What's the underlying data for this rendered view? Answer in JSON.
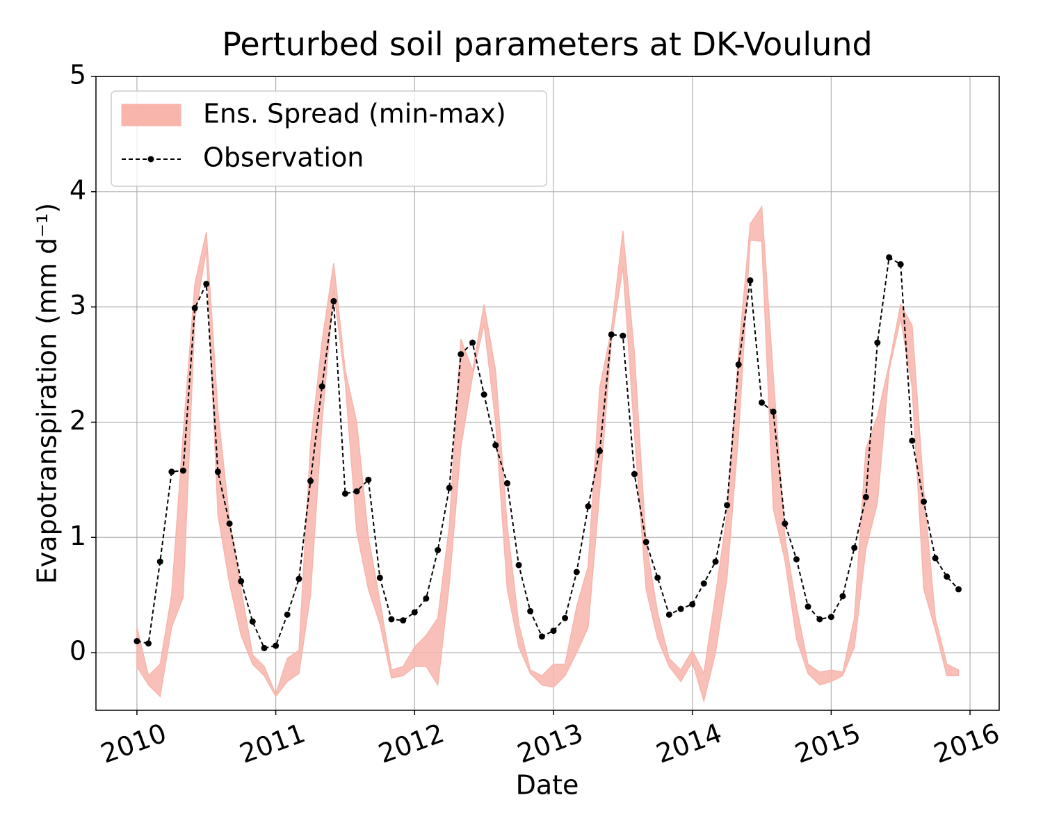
{
  "chart_data": {
    "type": "line",
    "title": "Perturbed soil parameters at DK-Voulund",
    "xlabel": "Date",
    "ylabel": "Evapotranspiration  (mm d⁻¹)",
    "x": [
      2010,
      2010.083,
      2010.167,
      2010.25,
      2010.333,
      2010.417,
      2010.5,
      2010.583,
      2010.667,
      2010.75,
      2010.833,
      2010.917,
      2011,
      2011.083,
      2011.167,
      2011.25,
      2011.333,
      2011.417,
      2011.5,
      2011.583,
      2011.667,
      2011.75,
      2011.833,
      2011.917,
      2012,
      2012.083,
      2012.167,
      2012.25,
      2012.333,
      2012.417,
      2012.5,
      2012.583,
      2012.667,
      2012.75,
      2012.833,
      2012.917,
      2013,
      2013.083,
      2013.167,
      2013.25,
      2013.333,
      2013.417,
      2013.5,
      2013.583,
      2013.667,
      2013.75,
      2013.833,
      2013.917,
      2014,
      2014.083,
      2014.167,
      2014.25,
      2014.333,
      2014.417,
      2014.5,
      2014.583,
      2014.667,
      2014.75,
      2014.833,
      2014.917,
      2015,
      2015.083,
      2015.167,
      2015.25,
      2015.333,
      2015.417,
      2015.5,
      2015.583,
      2015.667,
      2015.75,
      2015.833,
      2015.917
    ],
    "xlim": [
      2009.705,
      2016.21
    ],
    "xticks": [
      2010,
      2011,
      2012,
      2013,
      2014,
      2015,
      2016
    ],
    "ylim": [
      -0.5,
      5
    ],
    "yticks": [
      0,
      1,
      2,
      3,
      4,
      5
    ],
    "grid": true,
    "legend": "upper left",
    "band": {
      "name": "Ens. Spread (min-max)",
      "color": "#f7b5ab",
      "max": [
        0.22,
        -0.2,
        -0.1,
        0.5,
        1.9,
        3.2,
        3.65,
        2.1,
        1.15,
        0.55,
        -0.02,
        -0.12,
        -0.36,
        -0.05,
        0.02,
        1.8,
        2.7,
        3.38,
        2.45,
        2.0,
        1.0,
        0.45,
        -0.15,
        -0.12,
        0.05,
        0.15,
        0.3,
        1.1,
        2.72,
        2.45,
        3.02,
        2.45,
        1.1,
        0.25,
        -0.15,
        -0.2,
        -0.1,
        -0.1,
        0.4,
        0.75,
        2.3,
        2.8,
        3.66,
        2.6,
        0.95,
        0.35,
        -0.05,
        -0.15,
        0.02,
        -0.18,
        0.5,
        1.2,
        2.6,
        3.72,
        3.87,
        2.4,
        1.0,
        0.4,
        -0.1,
        -0.17,
        -0.15,
        -0.17,
        0.3,
        1.77,
        2.05,
        2.5,
        3.02,
        2.84,
        1.4,
        0.3,
        -0.1,
        -0.15
      ],
      "min": [
        -0.12,
        -0.28,
        -0.38,
        0.22,
        0.48,
        2.9,
        3.5,
        1.2,
        0.6,
        0.15,
        -0.1,
        -0.2,
        -0.38,
        -0.25,
        -0.18,
        0.5,
        2.0,
        3.15,
        2.35,
        1.05,
        0.55,
        0.25,
        -0.22,
        -0.2,
        -0.12,
        -0.12,
        -0.28,
        0.6,
        1.78,
        2.4,
        2.85,
        2.0,
        0.55,
        0.05,
        -0.18,
        -0.28,
        -0.3,
        -0.2,
        0.0,
        0.22,
        1.4,
        2.7,
        3.35,
        1.9,
        0.55,
        0.12,
        -0.12,
        -0.25,
        -0.08,
        -0.42,
        0.0,
        0.65,
        1.9,
        3.58,
        3.57,
        1.25,
        0.8,
        0.12,
        -0.18,
        -0.28,
        -0.25,
        -0.2,
        0.05,
        0.9,
        1.3,
        2.45,
        2.9,
        2.3,
        0.55,
        0.2,
        -0.2,
        -0.2
      ]
    },
    "series": [
      {
        "name": "Observation",
        "color": "#000000",
        "values": [
          0.1,
          0.08,
          0.79,
          1.57,
          1.58,
          2.99,
          3.2,
          1.57,
          1.12,
          0.62,
          0.27,
          0.04,
          0.06,
          0.33,
          0.64,
          1.49,
          2.31,
          3.05,
          1.38,
          1.4,
          1.5,
          0.65,
          0.29,
          0.28,
          0.35,
          0.47,
          0.89,
          1.43,
          2.59,
          2.69,
          2.24,
          1.8,
          1.47,
          0.76,
          0.36,
          0.14,
          0.19,
          0.3,
          0.7,
          1.27,
          1.75,
          2.76,
          2.75,
          1.55,
          0.96,
          0.65,
          0.33,
          0.38,
          0.42,
          0.6,
          0.79,
          1.28,
          2.5,
          3.23,
          2.17,
          2.09,
          1.12,
          0.81,
          0.4,
          0.29,
          0.31,
          0.49,
          0.91,
          1.35,
          2.69,
          3.43,
          3.37,
          1.84,
          1.31,
          0.82,
          0.66,
          0.55
        ]
      }
    ]
  }
}
